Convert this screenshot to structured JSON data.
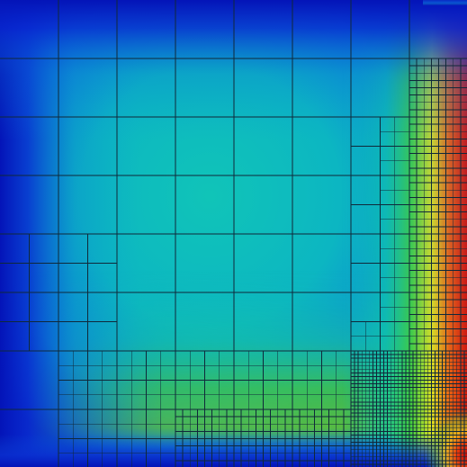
{
  "visualization": {
    "kind": "adaptive-mesh-scalar-field",
    "colormap": "jet",
    "colors": {
      "edge_blue": "#0514c8",
      "deep_blue": "#0a2ad4",
      "core_teal": "#08bcbc",
      "corner_red": "#d81408",
      "mesh_line": "#10283a"
    }
  }
}
